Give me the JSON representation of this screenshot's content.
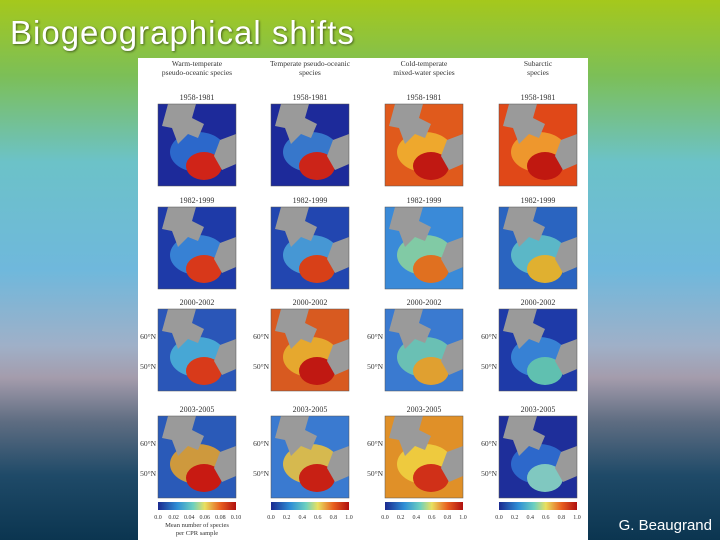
{
  "slide": {
    "title": "Biogeographical shifts",
    "credit": "G. Beaugrand"
  },
  "figure": {
    "column_headers": [
      "Warm-temperate pseudo-oceanic species",
      "Temperate pseudo-oceanic species",
      "Cold-temperate mixed-water species",
      "Subarctic species"
    ],
    "periods": [
      "1958-1981",
      "1982-1999",
      "2000-2002",
      "2003-2005"
    ],
    "lat_labels": [
      "60°N",
      "50°N"
    ],
    "colorbar_ticks": [
      [
        "0.0",
        "0.02",
        "0.04",
        "0.06",
        "0.08",
        "0.10"
      ],
      [
        "0.0",
        "0.2",
        "0.4",
        "0.6",
        "0.8",
        "1.0"
      ]
    ],
    "colorbar_caption": [
      "Mean number of species",
      "per CPR sample"
    ]
  }
}
